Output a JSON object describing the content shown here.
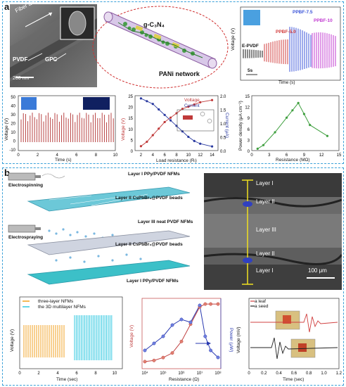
{
  "panel_a": {
    "label": "a",
    "tem": {
      "fiber_axis": "Fiber axis",
      "pvdf": "PVDF",
      "gpc": "GPC",
      "scale": "200 nm"
    },
    "schematic": {
      "g_c3n4": "g-C₃N₄",
      "pani": "PANi network"
    },
    "voltage_series": {
      "ylabel": "Voltage (V)",
      "xlabel": "Time (s)",
      "scale": "5s",
      "labels": [
        "E-PVDF",
        "PPBF-5.0",
        "PPBF-7.5",
        "PPBF-10"
      ],
      "colors": [
        "#111111",
        "#d23c3c",
        "#3b55d8",
        "#c03ad0"
      ]
    },
    "chart_voltage_time": {
      "ylabel": "Voltage (V)",
      "xlabel": "Time (s)",
      "yticks": [
        "50",
        "40",
        "30",
        "20",
        "10",
        "0",
        "-10"
      ],
      "xticks": [
        "0",
        "2",
        "4",
        "6",
        "8",
        "10"
      ]
    },
    "chart_load": {
      "legend": [
        "Voltage",
        "Current"
      ],
      "ylabel_left": "Voltage (V)",
      "ylabel_right": "Current (μA)",
      "xlabel": "Load resistance (Rₗ)",
      "xticks": [
        "2",
        "4",
        "6",
        "8",
        "10",
        "12",
        "14"
      ],
      "yticks_left": [
        "25",
        "20",
        "15",
        "10",
        "5",
        "0"
      ],
      "yticks_right": [
        "2.0",
        "1.5",
        "1.0",
        "0.5",
        "0.0"
      ]
    },
    "chart_power": {
      "ylabel": "Power density (μA cm⁻²)",
      "xlabel": "Resistance (MΩ)",
      "xticks": [
        "0",
        "3",
        "6",
        "9",
        "12",
        "15"
      ],
      "yticks": [
        "15",
        "12",
        "9",
        "6",
        "3",
        "0"
      ]
    }
  },
  "panel_b": {
    "label": "b",
    "process": {
      "electrospinning": "Electrospinning",
      "electrospraying": "Electrospraying",
      "layers": [
        "Layer I PPy/PVDF NFMs",
        "Layer II CsPbBr₃@PVDF beads",
        "Layer III neat PVDF NFMs",
        "Layer II CsPbBr₃@PVDF beads",
        "Layer I PPy/PVDF NFMs"
      ]
    },
    "sem": {
      "layers": [
        "Layer I",
        "Layer II",
        "Layer III",
        "Layer II",
        "Layer I"
      ],
      "scale": "100 μm"
    },
    "chart_nfm": {
      "legend": [
        "three-layer NFMs",
        "the 3D multilayer NFMs"
      ],
      "colors": [
        "#f0a020",
        "#30c8e0"
      ],
      "ylabel": "Voltage (V)",
      "xlabel": "Time (sec)",
      "xticks": [
        "0",
        "2",
        "4",
        "6",
        "8",
        "10"
      ]
    },
    "chart_resistance": {
      "ylabel_left": "Voltage (V)",
      "ylabel_right": "Power (μW)",
      "xlabel": "Resistance (Ω)",
      "xticks": [
        "10⁴",
        "10⁵",
        "10⁶",
        "10⁷",
        "10⁸"
      ]
    },
    "chart_leaf": {
      "legend": [
        "a leaf",
        "a seed"
      ],
      "ylabel": "Voltage (mV)",
      "xlabel": "Time (sec)",
      "xticks": [
        "0",
        "0.2",
        "0.4",
        "0.6",
        "0.8",
        "1.0",
        "1.2"
      ]
    }
  }
}
